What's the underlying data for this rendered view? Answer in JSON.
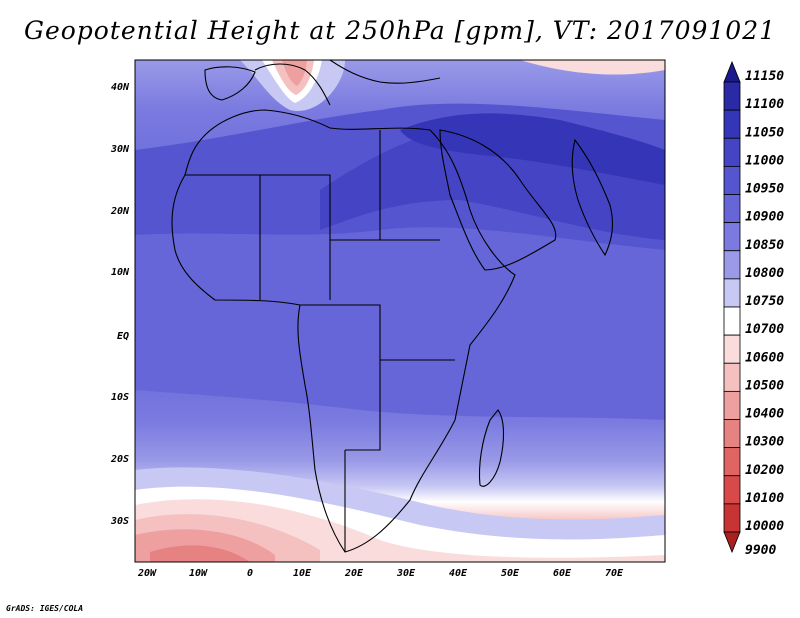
{
  "title": "Geopotential Height at 250hPa [gpm], VT: 2017091021",
  "credit": "GrADS: IGES/COLA",
  "map": {
    "projection": "latlon",
    "region": "Africa",
    "lon_range": [
      -22,
      80
    ],
    "lat_range": [
      -36,
      45
    ],
    "lon_ticks": [
      "20W",
      "10W",
      "0",
      "10E",
      "20E",
      "30E",
      "40E",
      "50E",
      "60E",
      "70E"
    ],
    "lat_ticks": [
      "40N",
      "30N",
      "20N",
      "10N",
      "EQ",
      "10S",
      "20S",
      "30S"
    ],
    "field": "geopotential height",
    "level": "250hPa",
    "units": "gpm"
  },
  "colorbar": {
    "levels": [
      {
        "label": "11150",
        "color": "#1a1a8c"
      },
      {
        "label": "11100",
        "color": "#2a2aa6"
      },
      {
        "label": "11050",
        "color": "#3535b8"
      },
      {
        "label": "11000",
        "color": "#4444c4"
      },
      {
        "label": "10950",
        "color": "#5555d0"
      },
      {
        "label": "10900",
        "color": "#6666d8"
      },
      {
        "label": "10850",
        "color": "#7a7ae0"
      },
      {
        "label": "10800",
        "color": "#9a9ae8"
      },
      {
        "label": "10750",
        "color": "#c8c8f4"
      },
      {
        "label": "10700",
        "color": "#ffffff"
      },
      {
        "label": "10600",
        "color": "#fbdcdc"
      },
      {
        "label": "10500",
        "color": "#f5c0c0"
      },
      {
        "label": "10400",
        "color": "#eea0a0"
      },
      {
        "label": "10300",
        "color": "#e68282"
      },
      {
        "label": "10200",
        "color": "#e06464"
      },
      {
        "label": "10100",
        "color": "#d84a4a"
      },
      {
        "label": "10000",
        "color": "#c83434"
      },
      {
        "label": "9900",
        "color": "#a82020"
      }
    ]
  }
}
